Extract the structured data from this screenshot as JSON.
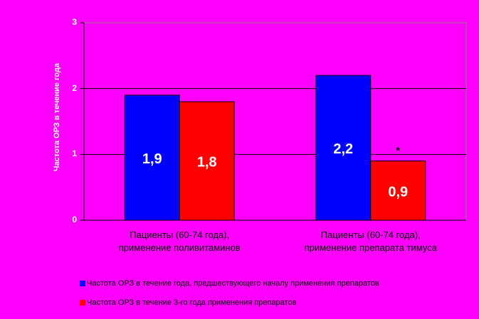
{
  "chart_data": {
    "type": "bar",
    "ylabel": "Частота ОРЗ в течение года",
    "ylim": [
      0,
      3
    ],
    "yticks": [
      "0",
      "1",
      "2",
      "3"
    ],
    "grid": true,
    "categories": [
      [
        "Пациенты (60-74 года),",
        "применение поливитаминов"
      ],
      [
        "Пациенты (60-74 года),",
        "применение препарата тимуса"
      ]
    ],
    "series": [
      {
        "name": "Частота ОРЗ в течение года, предшествующего началу применения препаратов",
        "color": "#0000ff",
        "values": [
          1.9,
          2.2
        ],
        "labels": [
          "1,9",
          "2,2"
        ]
      },
      {
        "name": "Частота ОРЗ в течение 3-го года применения препаратов",
        "color": "#ff0000",
        "values": [
          1.8,
          0.9
        ],
        "labels": [
          "1,8",
          "0,9"
        ]
      }
    ],
    "annotations": [
      {
        "category": 1,
        "series": 1,
        "text": "*"
      }
    ],
    "legend_position": "bottom-left"
  }
}
